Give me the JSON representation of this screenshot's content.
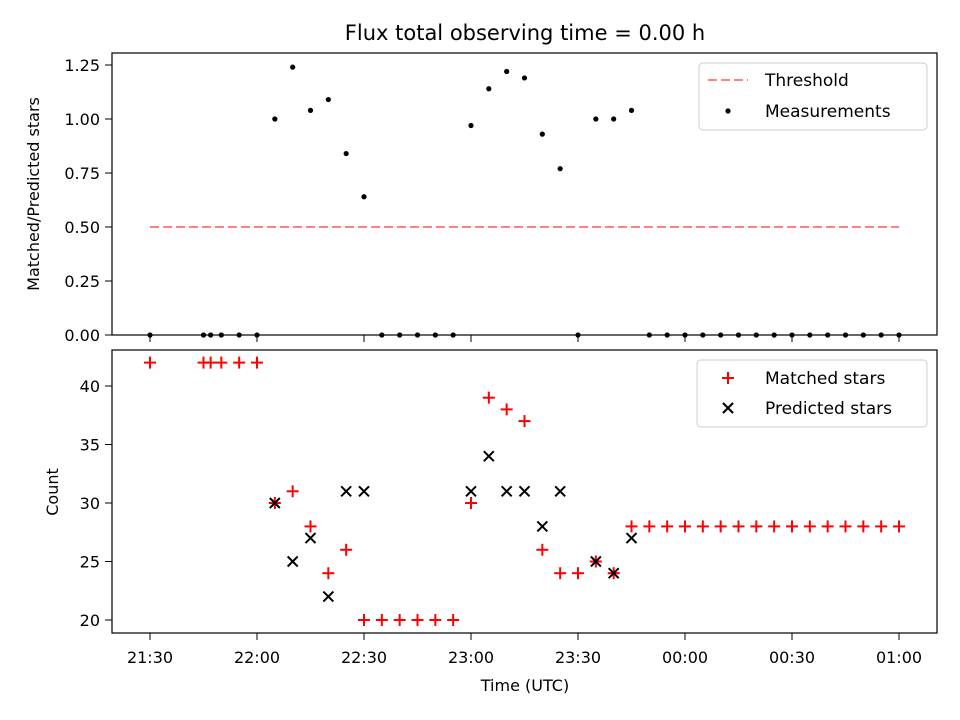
{
  "title": "Flux total observing time = 0.00 h",
  "chart_data": [
    {
      "type": "scatter",
      "ylabel": "Matched/Predicted stars",
      "xlabel": "",
      "ylim": [
        0.0,
        1.3
      ],
      "yticks": [
        "0.00",
        "0.25",
        "0.50",
        "0.75",
        "1.00",
        "1.25"
      ],
      "legend_position": "top-right",
      "threshold": {
        "name": "Threshold",
        "y": 0.5,
        "x_start": "21:30",
        "x_end": "01:00",
        "color": "#ff8080"
      },
      "series": [
        {
          "name": "Measurements",
          "color": "#000000",
          "x": [
            "21:30",
            "21:45",
            "21:47",
            "21:50",
            "21:55",
            "22:00",
            "22:05",
            "22:10",
            "22:15",
            "22:20",
            "22:25",
            "22:30",
            "22:35",
            "22:40",
            "22:45",
            "22:50",
            "22:55",
            "23:00",
            "23:05",
            "23:10",
            "23:15",
            "23:20",
            "23:25",
            "23:30",
            "23:35",
            "23:40",
            "23:45",
            "23:50",
            "23:55",
            "00:00",
            "00:05",
            "00:10",
            "00:15",
            "00:20",
            "00:25",
            "00:30",
            "00:35",
            "00:40",
            "00:45",
            "00:50",
            "00:55",
            "01:00"
          ],
          "y": [
            0,
            0,
            0,
            0,
            0,
            0,
            1.0,
            1.24,
            1.04,
            1.09,
            0.84,
            0.64,
            0,
            0,
            0,
            0,
            0,
            0.97,
            1.14,
            1.22,
            1.19,
            0.93,
            0.77,
            0,
            1.0,
            1.0,
            1.04,
            0,
            0,
            0,
            0,
            0,
            0,
            0,
            0,
            0,
            0,
            0,
            0,
            0,
            0,
            0
          ]
        }
      ]
    },
    {
      "type": "scatter",
      "ylabel": "Count",
      "xlabel": "Time (UTC)",
      "ylim": [
        19,
        43
      ],
      "yticks": [
        "20",
        "25",
        "30",
        "35",
        "40"
      ],
      "xticks": [
        "21:30",
        "22:00",
        "22:30",
        "23:00",
        "23:30",
        "00:00",
        "00:30",
        "01:00"
      ],
      "legend_position": "top-right",
      "series": [
        {
          "name": "Matched stars",
          "marker": "plus",
          "color": "#ff0000",
          "x": [
            "21:30",
            "21:45",
            "21:47",
            "21:50",
            "21:55",
            "22:00",
            "22:05",
            "22:10",
            "22:15",
            "22:20",
            "22:25",
            "22:30",
            "22:35",
            "22:40",
            "22:45",
            "22:50",
            "22:55",
            "23:00",
            "23:05",
            "23:10",
            "23:15",
            "23:20",
            "23:25",
            "23:30",
            "23:35",
            "23:40",
            "23:45",
            "23:50",
            "23:55",
            "00:00",
            "00:05",
            "00:10",
            "00:15",
            "00:20",
            "00:25",
            "00:30",
            "00:35",
            "00:40",
            "00:45",
            "00:50",
            "00:55",
            "01:00"
          ],
          "y": [
            42,
            42,
            42,
            42,
            42,
            42,
            30,
            31,
            28,
            24,
            26,
            20,
            20,
            20,
            20,
            20,
            20,
            30,
            39,
            38,
            37,
            26,
            24,
            24,
            25,
            24,
            28,
            28,
            28,
            28,
            28,
            28,
            28,
            28,
            28,
            28,
            28,
            28,
            28,
            28,
            28,
            28
          ]
        },
        {
          "name": "Predicted stars",
          "marker": "x",
          "color": "#000000",
          "x": [
            "22:05",
            "22:10",
            "22:15",
            "22:20",
            "22:25",
            "22:30",
            "23:00",
            "23:05",
            "23:10",
            "23:15",
            "23:20",
            "23:25",
            "23:35",
            "23:40",
            "23:45"
          ],
          "y": [
            30,
            25,
            27,
            22,
            31,
            31,
            31,
            34,
            31,
            31,
            28,
            31,
            25,
            24,
            27
          ]
        }
      ]
    }
  ]
}
